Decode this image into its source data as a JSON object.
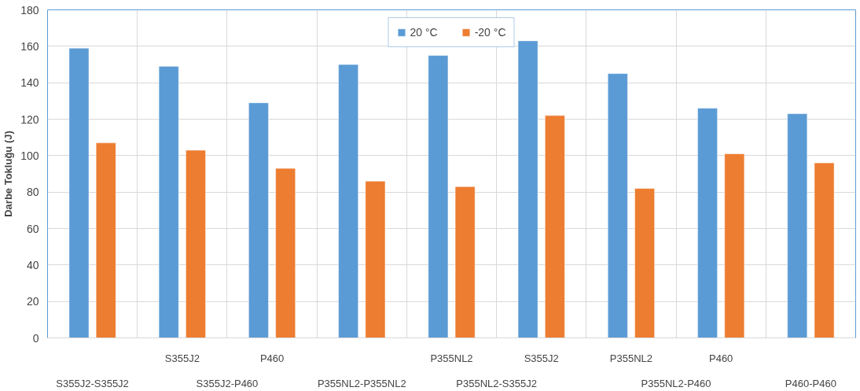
{
  "chart_data": {
    "type": "bar",
    "ylabel": "Darbe Tokluğu (J)",
    "categories": [
      null,
      "S355J2",
      "P460",
      null,
      "P355NL2",
      "S355J2",
      "P355NL2",
      "P460",
      null
    ],
    "annotations": [
      "S355J2-S355J2",
      "S355J2-P460",
      "P355NL2-P355NL2",
      "P355NL2-S355J2",
      "P355NL2-P460",
      "P460-P460"
    ],
    "series": [
      {
        "name": "20 °C",
        "color": "#5b9bd5",
        "values": [
          159,
          149,
          129,
          150,
          155,
          163,
          145,
          126,
          123
        ]
      },
      {
        "name": "-20 °C",
        "color": "#ed7d31",
        "values": [
          107,
          103,
          93,
          86,
          83,
          122,
          82,
          101,
          96
        ]
      }
    ],
    "ylim": [
      0,
      180
    ],
    "yticks": [
      0,
      20,
      40,
      60,
      80,
      100,
      120,
      140,
      160,
      180
    ],
    "grid": true,
    "legend": "top"
  }
}
